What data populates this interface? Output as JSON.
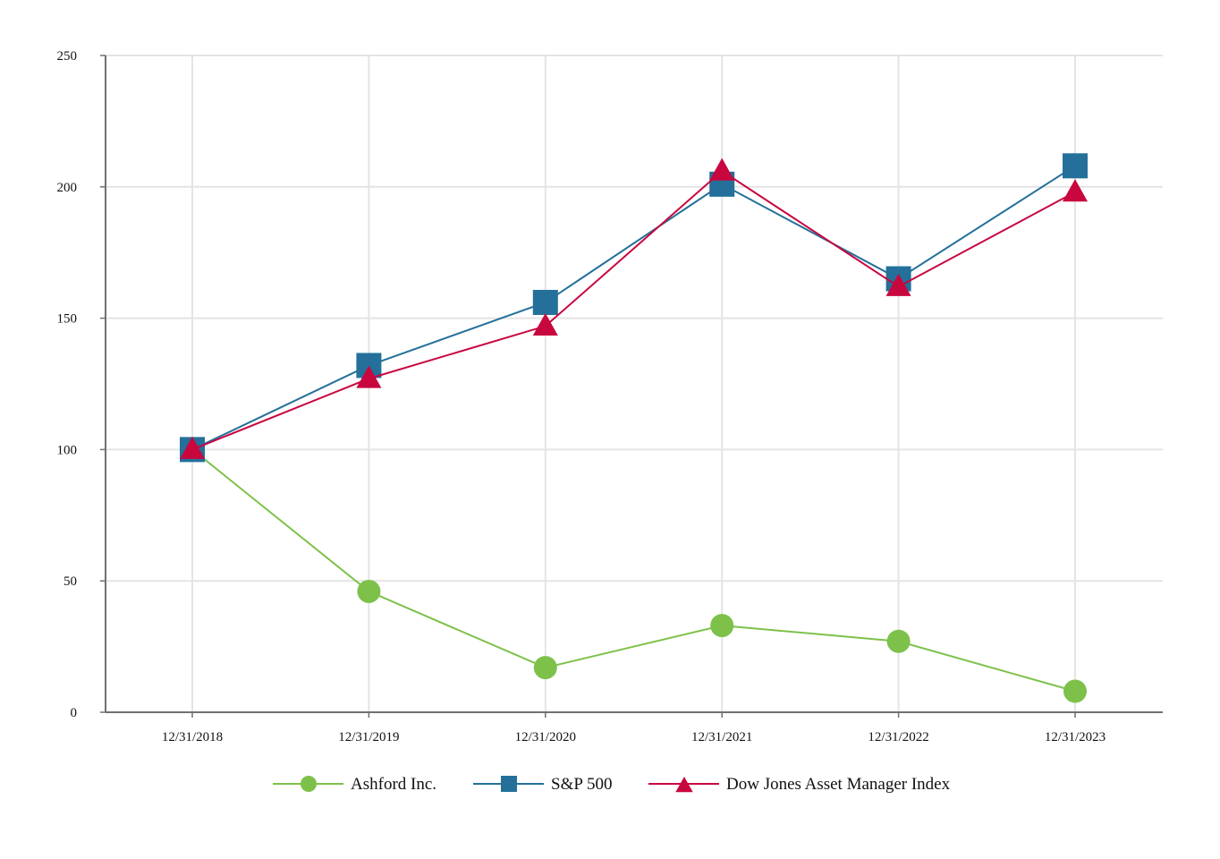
{
  "chart_data": {
    "type": "line",
    "title": "",
    "xlabel": "",
    "ylabel": "",
    "categories": [
      "12/31/2018",
      "12/31/2019",
      "12/31/2020",
      "12/31/2021",
      "12/31/2022",
      "12/31/2023"
    ],
    "ylim": [
      0,
      250
    ],
    "yticks": [
      0,
      50,
      100,
      150,
      200,
      250
    ],
    "grid": true,
    "legend_position": "bottom-center",
    "series": [
      {
        "name": "Ashford Inc.",
        "color": "#7dc14a",
        "marker": "circle",
        "values": [
          100,
          46,
          17,
          33,
          27,
          8
        ]
      },
      {
        "name": "S&P 500",
        "color": "#24709a",
        "marker": "square",
        "values": [
          100,
          132,
          156,
          201,
          165,
          208
        ]
      },
      {
        "name": "Dow Jones Asset Manager Index",
        "color": "#c8073f",
        "marker": "triangle",
        "values": [
          100,
          127,
          147,
          206,
          162,
          198
        ]
      }
    ]
  }
}
